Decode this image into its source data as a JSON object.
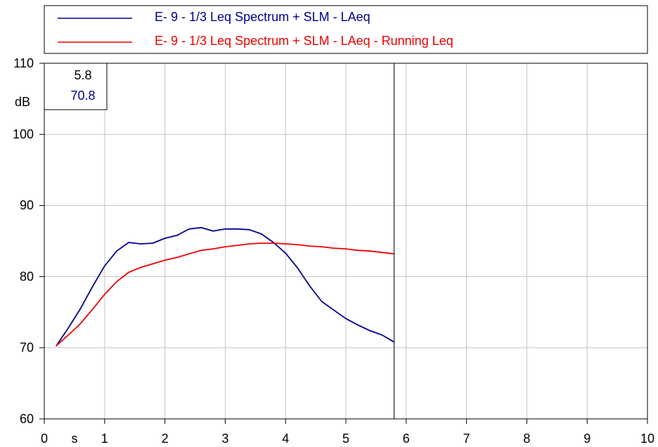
{
  "chart_data": {
    "type": "line",
    "xlim": [
      0,
      10
    ],
    "ylim": [
      60,
      110
    ],
    "x_ticks": [
      0,
      1,
      2,
      3,
      4,
      5,
      6,
      7,
      8,
      9,
      10
    ],
    "y_ticks": [
      60,
      70,
      80,
      90,
      100,
      110
    ],
    "x_unit": "s",
    "y_unit": "dB",
    "grid": true,
    "legend": {
      "placement": "top",
      "entries": [
        {
          "label": "E- 9 - 1/3 Leq Spectrum + SLM - LAeq",
          "color": "#00008f"
        },
        {
          "label": "E- 9 - 1/3 Leq Spectrum + SLM - LAeq - Running Leq",
          "color": "#ee0000"
        }
      ]
    },
    "cursor": {
      "x": 5.8,
      "x_label": "5.8",
      "y_label": "70.8"
    },
    "series": [
      {
        "name": "E- 9 - 1/3 Leq Spectrum + SLM - LAeq",
        "color": "#00008f",
        "x": [
          0.2,
          0.4,
          0.6,
          0.8,
          1.0,
          1.2,
          1.4,
          1.6,
          1.8,
          2.0,
          2.2,
          2.4,
          2.6,
          2.8,
          3.0,
          3.2,
          3.4,
          3.6,
          3.8,
          4.0,
          4.2,
          4.4,
          4.6,
          4.8,
          5.0,
          5.2,
          5.4,
          5.6,
          5.8
        ],
        "y": [
          70.3,
          72.8,
          75.5,
          78.6,
          81.5,
          83.6,
          84.8,
          84.6,
          84.7,
          85.4,
          85.8,
          86.7,
          86.9,
          86.4,
          86.7,
          86.7,
          86.6,
          86.0,
          84.8,
          83.3,
          81.2,
          78.7,
          76.5,
          75.3,
          74.1,
          73.2,
          72.4,
          71.8,
          70.8
        ]
      },
      {
        "name": "E- 9 - 1/3 Leq Spectrum + SLM - LAeq - Running Leq",
        "color": "#ee0000",
        "x": [
          0.2,
          0.4,
          0.6,
          0.8,
          1.0,
          1.2,
          1.4,
          1.6,
          1.8,
          2.0,
          2.2,
          2.4,
          2.6,
          2.8,
          3.0,
          3.2,
          3.4,
          3.6,
          3.8,
          4.0,
          4.2,
          4.4,
          4.6,
          4.8,
          5.0,
          5.2,
          5.4,
          5.6,
          5.8
        ],
        "y": [
          70.3,
          71.8,
          73.4,
          75.4,
          77.5,
          79.3,
          80.6,
          81.3,
          81.8,
          82.3,
          82.7,
          83.2,
          83.7,
          83.9,
          84.2,
          84.4,
          84.6,
          84.7,
          84.7,
          84.6,
          84.5,
          84.3,
          84.2,
          84.0,
          83.9,
          83.7,
          83.6,
          83.4,
          83.2
        ]
      }
    ]
  }
}
